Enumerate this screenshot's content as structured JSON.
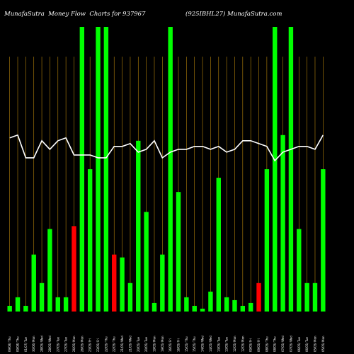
{
  "header": {
    "left_title": "MunafaSutra  Money Flow  Charts for 937967",
    "right_title": "(925IBHL27) MunafaSutra.com"
  },
  "colors": {
    "background": "#000000",
    "up": "#00ff00",
    "down": "#ff0000",
    "grid": "#b8860b",
    "line": "#ffffff",
    "text": "#ffffff"
  },
  "chart_data": {
    "type": "bar",
    "title": "MunafaSutra  Money Flow  Charts for 937967",
    "ylim": [
      0,
      100
    ],
    "line_ylim": [
      0,
      100
    ],
    "grid": "vertical",
    "categories": [
      "09-08 Thu",
      "09-08 Thu",
      "01-07 Tue",
      "30-06 Mon",
      "28-05 Wed",
      "28-05 Wed",
      "27-05 Tue",
      "27-05 Tue",
      "26-05 Mon",
      "26-05 Mon",
      "23-05 Fri",
      "23-05 Fri",
      "22-05 Thu",
      "22-05 Thu",
      "21-05 Wed",
      "21-05 Wed",
      "20-05 Tue",
      "20-05 Tue",
      "19-05 Mon",
      "19-05 Mon",
      "16-05 Fri",
      "16-05 Fri",
      "15-05 Thu",
      "15-05 Thu",
      "14-05 Wed",
      "14-05 Wed",
      "13-05 Tue",
      "13-05 Tue",
      "12-05 Mon",
      "12-05 Mon",
      "09-05 Fri",
      "09-05 Fri",
      "08-05 Thu",
      "08-05 Thu",
      "07-05 Wed",
      "07-05 Wed",
      "06-05 Tue",
      "06-05 Tue",
      "05-05 Mon",
      "05-05 Mon"
    ],
    "tick_labels": [
      "09/08/ Thu",
      "09/08/ Thu",
      "01/07/ Tue",
      "30/06/ Mon",
      "28/05/ Wed",
      "28/05/ Wed",
      "27/05/ Tue",
      "27/05/ Tue",
      "26/05/ Mon",
      "26/05/ Mon",
      "23/05/ Fri",
      "23/05/ Fri",
      "22/05/ Thu",
      "22/05/ Thu",
      "21/05/ Wed",
      "21/05/ Wed",
      "20/05/ Tue",
      "20/05/ Tue",
      "19/05/ Mon",
      "19/05/ Mon",
      "16/05/ Fri",
      "16/05/ Fri",
      "15/05/ Thu",
      "15/05/ Thu",
      "14/05/ Wed",
      "14/05/ Wed",
      "13/05/ Tue",
      "13/05/ Tue",
      "12/05/ Mon",
      "12/05/ Mon",
      "09/05/ Fri",
      "09/05/ Fri",
      "08/05/ Thu",
      "08/05/ Thu",
      "07/05/ Wed",
      "07/05/ Wed",
      "06/05/ Tue",
      "06/05/ Tue",
      "05/05/ Mon",
      "05/05/ Mon"
    ],
    "series": [
      {
        "values": [
          2,
          5,
          2,
          20,
          10,
          29,
          5,
          5,
          30,
          100,
          50,
          100,
          100,
          20,
          19,
          10,
          60,
          35,
          3,
          20,
          100,
          42,
          5,
          2,
          1,
          7,
          47,
          5,
          4,
          2,
          3,
          10,
          50,
          100,
          62,
          100,
          29,
          10,
          10,
          50
        ],
        "direction": [
          "up",
          "up",
          "up",
          "up",
          "up",
          "up",
          "up",
          "up",
          "down",
          "up",
          "up",
          "up",
          "up",
          "down",
          "up",
          "up",
          "up",
          "up",
          "up",
          "up",
          "up",
          "up",
          "up",
          "up",
          "up",
          "up",
          "up",
          "up",
          "up",
          "up",
          "up",
          "down",
          "up",
          "up",
          "up",
          "up",
          "up",
          "up",
          "up",
          "up"
        ]
      },
      {
        "type": "line",
        "values": [
          61,
          62,
          54,
          54,
          60,
          57,
          60,
          61,
          55,
          55,
          55,
          54,
          54,
          58,
          58,
          59,
          56,
          57,
          60,
          54,
          56,
          57,
          57,
          58,
          58,
          57,
          58,
          56,
          57,
          60,
          60,
          59,
          58,
          53,
          56,
          57,
          58,
          58,
          57,
          62
        ]
      }
    ]
  }
}
